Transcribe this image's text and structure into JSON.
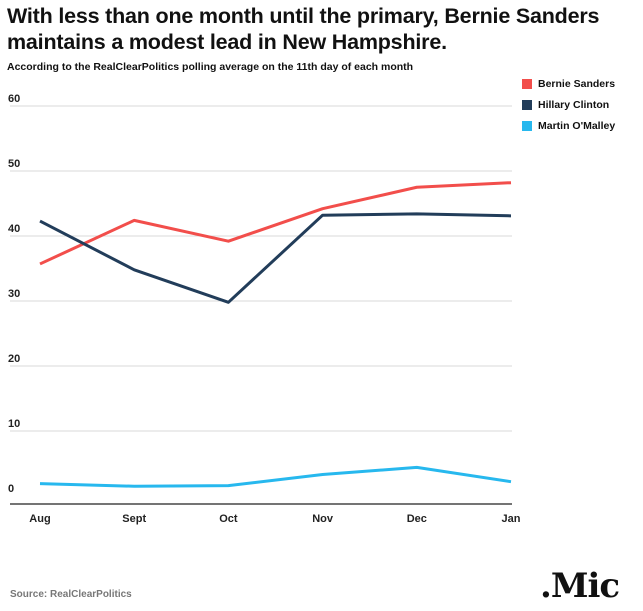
{
  "title": "With less than one month until the primary, Bernie Sanders\nmaintains a modest lead in New Hampshire.",
  "subtitle": "According to the RealClearPolitics polling average on the 11th day of each month",
  "source": "Source: RealClearPolitics",
  "logo": ".Mic",
  "chart_data": {
    "type": "line",
    "title": "With less than one month until the primary, Bernie Sanders maintains a modest lead in New Hampshire.",
    "subtitle": "According to the RealClearPolitics polling average on the 11th day of each month",
    "categories": [
      "Aug",
      "Sept",
      "Oct",
      "Nov",
      "Dec",
      "Jan"
    ],
    "ylim": [
      0,
      60
    ],
    "yticks": [
      0,
      10,
      20,
      30,
      40,
      50,
      60
    ],
    "grid": true,
    "legend_position": "top-right",
    "series": [
      {
        "name": "Bernie Sanders",
        "color": "#f24e4b",
        "values": [
          35.7,
          42.4,
          39.2,
          44.2,
          47.5,
          48.2
        ]
      },
      {
        "name": "Hillary Clinton",
        "color": "#223d5a",
        "values": [
          42.3,
          34.8,
          29.8,
          43.2,
          43.4,
          43.1
        ]
      },
      {
        "name": "Martin O'Malley",
        "color": "#27b8ee",
        "values": [
          1.9,
          1.5,
          1.6,
          3.3,
          4.4,
          2.2
        ]
      }
    ]
  }
}
